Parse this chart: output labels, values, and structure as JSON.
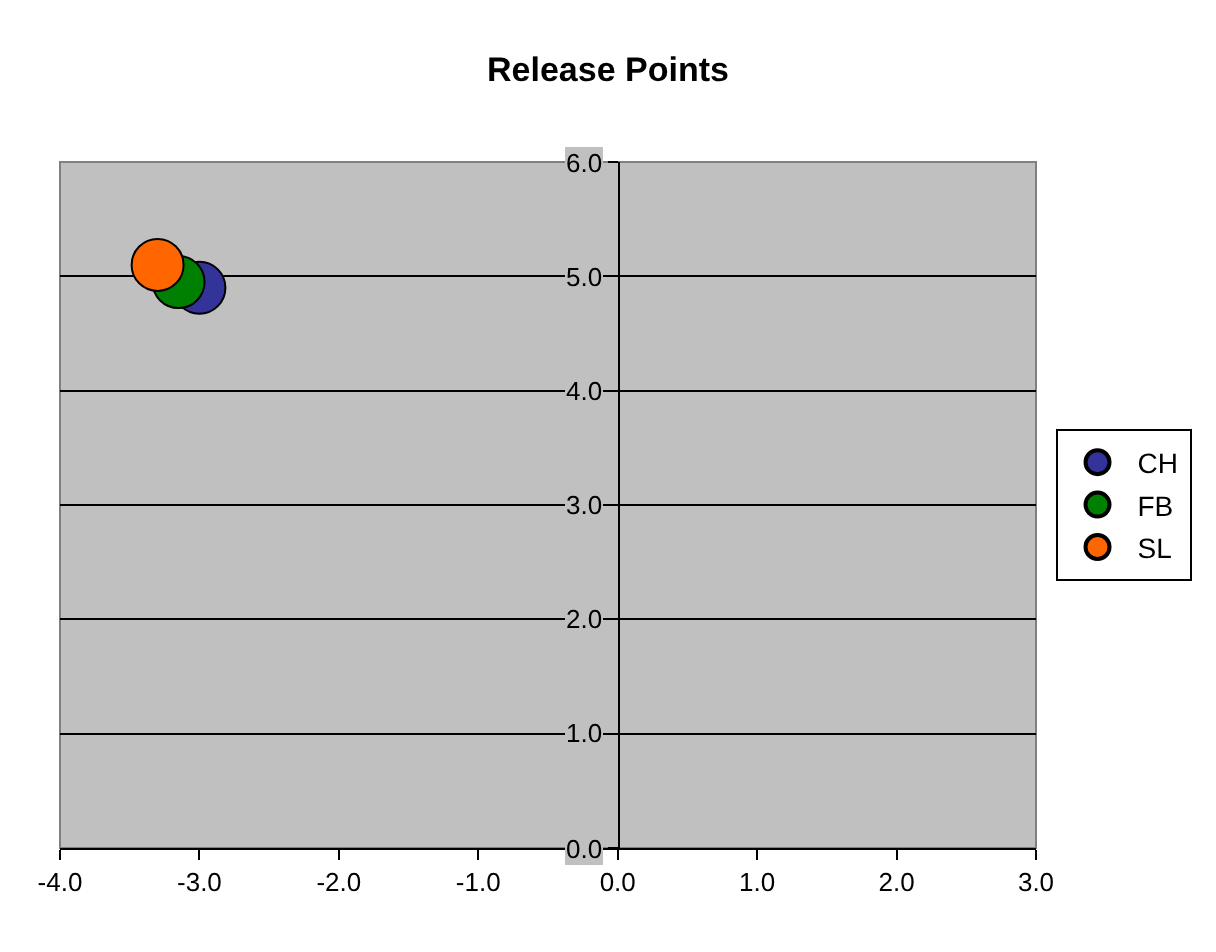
{
  "chart_data": {
    "type": "scatter",
    "title": "Release Points",
    "xlim": [
      -4,
      3
    ],
    "xticks": [
      {
        "value": -4,
        "label": "-4.0"
      },
      {
        "value": -3,
        "label": "-3.0"
      },
      {
        "value": -2,
        "label": "-2.0"
      },
      {
        "value": -1,
        "label": "-1.0"
      },
      {
        "value": 0,
        "label": "0.0"
      },
      {
        "value": 1,
        "label": "1.0"
      },
      {
        "value": 2,
        "label": "2.0"
      },
      {
        "value": 3,
        "label": "3.0"
      }
    ],
    "ylim": [
      0,
      6
    ],
    "yticks": [
      {
        "value": 0,
        "label": "0.0"
      },
      {
        "value": 1,
        "label": "1.0"
      },
      {
        "value": 2,
        "label": "2.0"
      },
      {
        "value": 3,
        "label": "3.0"
      },
      {
        "value": 4,
        "label": "4.0"
      },
      {
        "value": 5,
        "label": "5.0"
      },
      {
        "value": 6,
        "label": "6.0"
      }
    ],
    "grid": "y",
    "legend": "right",
    "marker": "circle",
    "series": [
      {
        "name": "CH",
        "color": "#333399",
        "x": [
          -3.0
        ],
        "values": [
          4.9
        ]
      },
      {
        "name": "FB",
        "color": "#008000",
        "x": [
          -3.15
        ],
        "values": [
          4.95
        ]
      },
      {
        "name": "SL",
        "color": "#ff6600",
        "x": [
          -3.3
        ],
        "values": [
          5.1
        ]
      }
    ]
  }
}
